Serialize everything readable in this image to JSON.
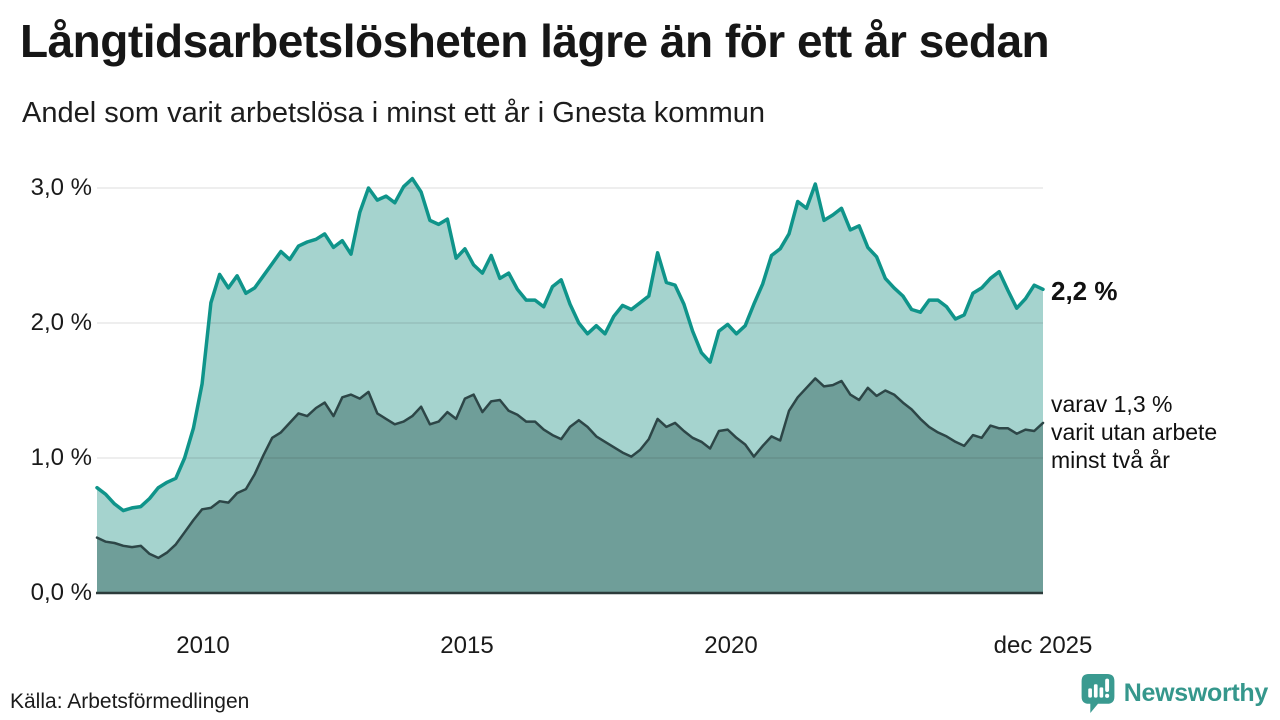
{
  "header": {
    "title": "Långtidsarbetslösheten lägre än för ett år sedan",
    "subtitle": "Andel som varit arbetslösa i minst ett år i Gnesta kommun"
  },
  "chart_data": {
    "type": "area",
    "title": "Långtidsarbetslösheten lägre än för ett år sedan",
    "subtitle": "Andel som varit arbetslösa i minst ett år i Gnesta kommun",
    "unit": "%",
    "x_start": 2008.0,
    "x_end": 2025.917,
    "ylim": [
      0,
      3.1
    ],
    "grid": "horizontal",
    "y_ticks": [
      {
        "value": 0,
        "label": "0,0 %"
      },
      {
        "value": 1,
        "label": "1,0 %"
      },
      {
        "value": 2,
        "label": "2,0 %"
      },
      {
        "value": 3,
        "label": "3,0 %"
      }
    ],
    "x_ticks": [
      {
        "value": 2010,
        "label": "2010"
      },
      {
        "value": 2015,
        "label": "2015"
      },
      {
        "value": 2020,
        "label": "2020"
      },
      {
        "value": 2025.917,
        "label": "dec 2025"
      }
    ],
    "series": [
      {
        "name": "Arbetslösa minst ett år",
        "color": "#0f948a",
        "fill": "#a5d3ce",
        "stroke_width": 3.5,
        "last_value": "2,2 %",
        "values": [
          0.78,
          0.73,
          0.66,
          0.61,
          0.63,
          0.64,
          0.7,
          0.78,
          0.82,
          0.85,
          1.0,
          1.22,
          1.55,
          2.15,
          2.36,
          2.26,
          2.35,
          2.22,
          2.26,
          2.35,
          2.44,
          2.53,
          2.47,
          2.57,
          2.6,
          2.62,
          2.66,
          2.56,
          2.61,
          2.51,
          2.82,
          3.0,
          2.91,
          2.94,
          2.89,
          3.01,
          3.07,
          2.97,
          2.76,
          2.73,
          2.77,
          2.48,
          2.55,
          2.43,
          2.37,
          2.5,
          2.33,
          2.37,
          2.25,
          2.17,
          2.17,
          2.12,
          2.27,
          2.32,
          2.14,
          2.0,
          1.92,
          1.98,
          1.92,
          2.05,
          2.13,
          2.1,
          2.15,
          2.2,
          2.52,
          2.3,
          2.28,
          2.14,
          1.94,
          1.78,
          1.71,
          1.94,
          1.99,
          1.92,
          1.98,
          2.14,
          2.29,
          2.5,
          2.55,
          2.66,
          2.9,
          2.85,
          3.03,
          2.76,
          2.8,
          2.85,
          2.69,
          2.72,
          2.56,
          2.49,
          2.33,
          2.26,
          2.2,
          2.1,
          2.08,
          2.17,
          2.17,
          2.12,
          2.03,
          2.06,
          2.22,
          2.26,
          2.33,
          2.38,
          2.24,
          2.11,
          2.18,
          2.28,
          2.25
        ]
      },
      {
        "name": "Varav utan arbete minst två år",
        "color": "#2d4647",
        "fill": "#6f9e99",
        "stroke_width": 2.5,
        "last_value": "1,3 %",
        "values": [
          0.41,
          0.38,
          0.37,
          0.35,
          0.34,
          0.35,
          0.29,
          0.26,
          0.3,
          0.36,
          0.45,
          0.54,
          0.62,
          0.63,
          0.68,
          0.67,
          0.74,
          0.77,
          0.88,
          1.02,
          1.15,
          1.19,
          1.26,
          1.33,
          1.31,
          1.37,
          1.41,
          1.31,
          1.45,
          1.47,
          1.44,
          1.49,
          1.33,
          1.29,
          1.25,
          1.27,
          1.31,
          1.38,
          1.25,
          1.27,
          1.34,
          1.29,
          1.44,
          1.47,
          1.34,
          1.42,
          1.43,
          1.35,
          1.32,
          1.27,
          1.27,
          1.21,
          1.17,
          1.14,
          1.23,
          1.28,
          1.23,
          1.16,
          1.12,
          1.08,
          1.04,
          1.01,
          1.06,
          1.14,
          1.29,
          1.23,
          1.26,
          1.2,
          1.15,
          1.12,
          1.07,
          1.2,
          1.21,
          1.15,
          1.1,
          1.01,
          1.09,
          1.16,
          1.13,
          1.35,
          1.45,
          1.52,
          1.59,
          1.53,
          1.54,
          1.57,
          1.47,
          1.43,
          1.52,
          1.46,
          1.5,
          1.47,
          1.41,
          1.36,
          1.29,
          1.23,
          1.19,
          1.16,
          1.12,
          1.09,
          1.17,
          1.15,
          1.24,
          1.22,
          1.22,
          1.18,
          1.21,
          1.2,
          1.26
        ]
      }
    ],
    "annotations": {
      "last_value_label": "2,2 %",
      "secondary_label_lines": [
        "varav 1,3 %",
        "varit utan arbete",
        "minst två år"
      ]
    }
  },
  "footer": {
    "source": "Källa: Arbetsförmedlingen",
    "brand": "Newsworthy",
    "brand_color": "#35978c"
  }
}
